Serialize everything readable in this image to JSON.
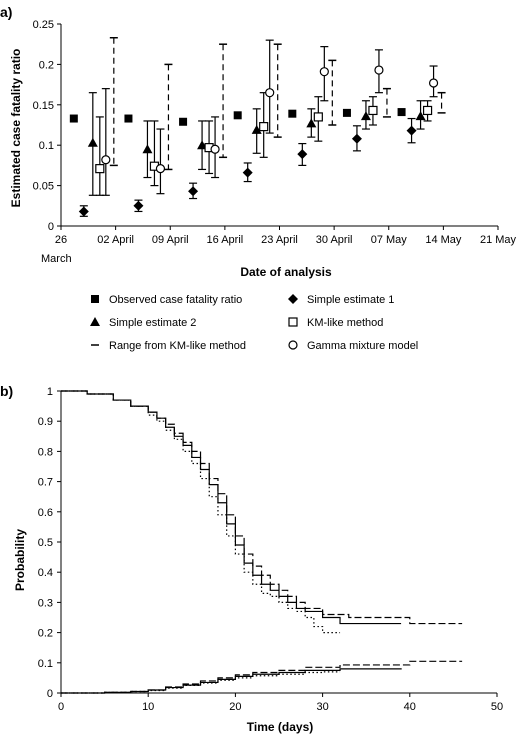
{
  "chart_data": [
    {
      "panel_label": "a)",
      "type": "scatter",
      "xlabel": "Date of analysis",
      "ylabel": "Estimated case fatality ratio",
      "x_tick_labels": [
        "26",
        "02 April",
        "09 April",
        "16 April",
        "23 April",
        "30 April",
        "07 May",
        "14 May",
        "21 May"
      ],
      "x_tick_sublabel": "March",
      "ylim": [
        0,
        0.25
      ],
      "y_ticks": [
        "0",
        "0.05",
        "0.1",
        "0.15",
        "0.2",
        "0.25"
      ],
      "legend": [
        {
          "key": "observed",
          "label": "Observed case fatality ratio",
          "marker": "filled-square"
        },
        {
          "key": "simple1",
          "label": "Simple estimate 1",
          "marker": "filled-diamond"
        },
        {
          "key": "simple2",
          "label": "Simple estimate 2",
          "marker": "filled-triangle"
        },
        {
          "key": "km",
          "label": "KM-like method",
          "marker": "open-square"
        },
        {
          "key": "range",
          "label": "Range from KM-like method",
          "marker": "dash"
        },
        {
          "key": "gamma",
          "label": "Gamma mixture model",
          "marker": "open-circle"
        }
      ],
      "analysis_dates": [
        "2003-04-01",
        "2003-04-08",
        "2003-04-15",
        "2003-04-22",
        "2003-04-29",
        "2003-05-06",
        "2003-05-13"
      ],
      "series": {
        "observed": [
          0.133,
          0.133,
          0.129,
          0.137,
          0.139,
          0.14,
          0.141
        ],
        "simple1": {
          "values": [
            0.018,
            0.025,
            0.043,
            0.066,
            0.089,
            0.108,
            0.118
          ],
          "ci": [
            [
              0.012,
              0.025
            ],
            [
              0.018,
              0.032
            ],
            [
              0.034,
              0.053
            ],
            [
              0.055,
              0.078
            ],
            [
              0.075,
              0.102
            ],
            [
              0.093,
              0.124
            ],
            [
              0.103,
              0.133
            ]
          ]
        },
        "simple2": {
          "values": [
            0.103,
            0.095,
            0.1,
            0.119,
            0.127,
            0.136,
            0.136
          ],
          "ci": [
            [
              0.038,
              0.165
            ],
            [
              0.06,
              0.13
            ],
            [
              0.07,
              0.13
            ],
            [
              0.09,
              0.145
            ],
            [
              0.11,
              0.145
            ],
            [
              0.12,
              0.155
            ],
            [
              0.12,
              0.155
            ]
          ]
        },
        "km": {
          "values": [
            0.071,
            0.074,
            0.097,
            0.123,
            0.135,
            0.143,
            0.143
          ],
          "ci": [
            [
              0.038,
              0.135
            ],
            [
              0.05,
              0.13
            ],
            [
              0.065,
              0.13
            ],
            [
              0.085,
              0.165
            ],
            [
              0.105,
              0.16
            ],
            [
              0.125,
              0.16
            ],
            [
              0.13,
              0.155
            ]
          ]
        },
        "gamma": {
          "values": [
            0.082,
            0.071,
            0.095,
            0.165,
            0.191,
            0.193,
            0.177
          ],
          "ci": [
            [
              0.038,
              0.17
            ],
            [
              0.04,
              0.12
            ],
            [
              0.06,
              0.135
            ],
            [
              0.115,
              0.23
            ],
            [
              0.155,
              0.222
            ],
            [
              0.165,
              0.218
            ],
            [
              0.16,
              0.198
            ]
          ]
        },
        "range": [
          [
            0.075,
            0.233
          ],
          [
            0.07,
            0.2
          ],
          [
            0.085,
            0.225
          ],
          [
            0.11,
            0.225
          ],
          [
            0.125,
            0.205
          ],
          [
            0.135,
            0.17
          ],
          [
            0.14,
            0.165
          ]
        ]
      }
    },
    {
      "panel_label": "b)",
      "type": "line",
      "xlabel": "Time (days)",
      "ylabel": "Probability",
      "xlim": [
        0,
        50
      ],
      "ylim": [
        0,
        1
      ],
      "x_ticks": [
        "0",
        "10",
        "20",
        "30",
        "40",
        "50"
      ],
      "y_ticks": [
        "0",
        "0.1",
        "0.2",
        "0.3",
        "0.4",
        "0.5",
        "0.6",
        "0.7",
        "0.8",
        "0.9",
        "1"
      ],
      "series": [
        {
          "style": "solid",
          "x": [
            0,
            3,
            6,
            8,
            10,
            11,
            12,
            13,
            14,
            15,
            16,
            17,
            18,
            19,
            20,
            21,
            22,
            23,
            24,
            25,
            26,
            27,
            28,
            30,
            32,
            39
          ],
          "y": [
            1,
            0.99,
            0.97,
            0.95,
            0.93,
            0.91,
            0.88,
            0.85,
            0.82,
            0.78,
            0.74,
            0.69,
            0.63,
            0.56,
            0.49,
            0.43,
            0.39,
            0.36,
            0.34,
            0.32,
            0.3,
            0.28,
            0.27,
            0.25,
            0.23,
            0.23
          ]
        },
        {
          "style": "dashed",
          "x": [
            0,
            3,
            6,
            8,
            10,
            11,
            12,
            13,
            14,
            15,
            16,
            17,
            18,
            19,
            20,
            21,
            22,
            23,
            24,
            25,
            26,
            27,
            28,
            30,
            33,
            40,
            46
          ],
          "y": [
            1,
            0.99,
            0.97,
            0.95,
            0.93,
            0.91,
            0.89,
            0.86,
            0.83,
            0.8,
            0.76,
            0.71,
            0.66,
            0.59,
            0.52,
            0.46,
            0.42,
            0.39,
            0.36,
            0.34,
            0.32,
            0.3,
            0.28,
            0.26,
            0.25,
            0.23,
            0.23
          ]
        },
        {
          "style": "dotted",
          "x": [
            0,
            3,
            6,
            8,
            10,
            11,
            12,
            13,
            14,
            15,
            16,
            17,
            18,
            19,
            20,
            21,
            22,
            23,
            24,
            25,
            26,
            27,
            28,
            29,
            30,
            32
          ],
          "y": [
            1,
            0.99,
            0.97,
            0.95,
            0.92,
            0.9,
            0.87,
            0.84,
            0.8,
            0.76,
            0.71,
            0.65,
            0.59,
            0.52,
            0.46,
            0.4,
            0.36,
            0.33,
            0.32,
            0.3,
            0.28,
            0.27,
            0.25,
            0.22,
            0.2,
            0.2
          ]
        },
        {
          "style": "solid",
          "x": [
            0,
            5,
            8,
            10,
            12,
            14,
            16,
            18,
            20,
            22,
            25,
            28,
            32,
            39
          ],
          "y": [
            0,
            0.002,
            0.005,
            0.01,
            0.018,
            0.026,
            0.035,
            0.045,
            0.055,
            0.062,
            0.068,
            0.075,
            0.08,
            0.082
          ]
        },
        {
          "style": "dashed",
          "x": [
            0,
            5,
            8,
            10,
            12,
            14,
            16,
            18,
            20,
            22,
            25,
            28,
            32,
            40,
            46
          ],
          "y": [
            0,
            0.002,
            0.005,
            0.01,
            0.02,
            0.03,
            0.04,
            0.05,
            0.06,
            0.068,
            0.075,
            0.085,
            0.093,
            0.105,
            0.105
          ]
        },
        {
          "style": "dotted",
          "x": [
            0,
            5,
            8,
            10,
            12,
            14,
            16,
            18,
            20,
            22,
            25,
            28,
            30,
            32
          ],
          "y": [
            0,
            0.002,
            0.005,
            0.008,
            0.016,
            0.025,
            0.033,
            0.042,
            0.05,
            0.057,
            0.062,
            0.068,
            0.07,
            0.07
          ]
        }
      ]
    }
  ]
}
